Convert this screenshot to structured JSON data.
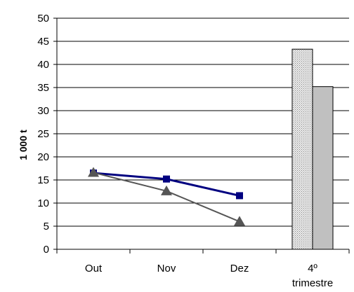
{
  "chart_data": {
    "type": "line",
    "ylabel": "1 000 t",
    "ylim": [
      0,
      50
    ],
    "yticks": [
      0,
      5,
      10,
      15,
      20,
      25,
      30,
      35,
      40,
      45,
      50
    ],
    "grid": true,
    "legend": "none",
    "categories": [
      "Out",
      "Nov",
      "Dez",
      "4º",
      "trimestre"
    ],
    "series": [
      {
        "type": "line",
        "marker": "square",
        "color": "#000080",
        "x": [
          "Out",
          "Nov",
          "Dez"
        ],
        "values": [
          16.5,
          15.2,
          11.6
        ]
      },
      {
        "type": "line",
        "marker": "triangle",
        "color": "#555555",
        "x": [
          "Out",
          "Nov",
          "Dez"
        ],
        "values": [
          16.6,
          12.6,
          6.0
        ]
      },
      {
        "type": "bar",
        "pattern": "dotted",
        "color": "#d4d4d4",
        "x": [
          "4º trimestre"
        ],
        "values": [
          43.3
        ]
      },
      {
        "type": "bar",
        "pattern": "solid",
        "color": "#c0c0c0",
        "x": [
          "4º trimestre"
        ],
        "values": [
          35.2
        ]
      }
    ]
  }
}
